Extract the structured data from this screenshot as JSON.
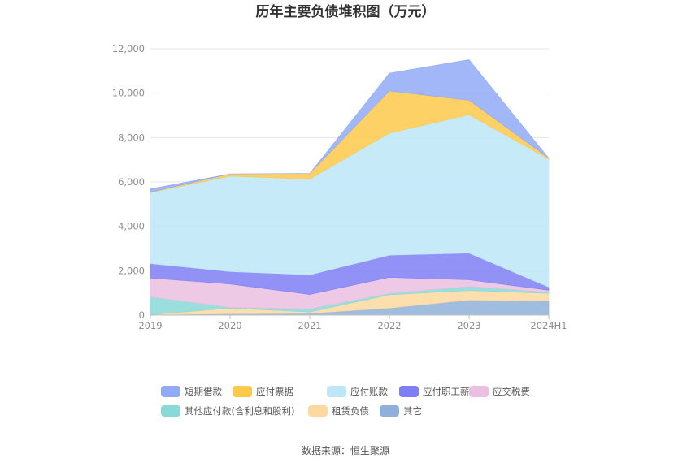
{
  "chart_data": {
    "type": "area",
    "stacked": true,
    "title": "历年主要负债堆积图（万元）",
    "xlabel": "",
    "ylabel": "",
    "categories": [
      "2019",
      "2020",
      "2021",
      "2022",
      "2023",
      "2024H1"
    ],
    "ylim": [
      0,
      12000
    ],
    "yticks": [
      0,
      2000,
      4000,
      6000,
      8000,
      10000,
      12000
    ],
    "ytick_labels": [
      "0",
      "2,000",
      "4,000",
      "6,000",
      "8,000",
      "10,000",
      "12,000"
    ],
    "grid": true,
    "legend_position": "bottom",
    "series": [
      {
        "name": "其它",
        "color": "#8fb0d9",
        "values": [
          20,
          60,
          80,
          320,
          680,
          650
        ]
      },
      {
        "name": "租赁负债",
        "color": "#fdd9a0",
        "values": [
          0,
          260,
          60,
          600,
          430,
          330
        ]
      },
      {
        "name": "其他应付款(含利息和股利)",
        "color": "#8ad8d8",
        "values": [
          800,
          30,
          140,
          60,
          180,
          60
        ]
      },
      {
        "name": "应交税费",
        "color": "#eabfe0",
        "values": [
          850,
          1050,
          650,
          720,
          300,
          80
        ]
      },
      {
        "name": "应付职工薪酬",
        "color": "#7f7ff5",
        "values": [
          650,
          560,
          880,
          1000,
          1200,
          140
        ]
      },
      {
        "name": "应付账款",
        "color": "#bde6f8",
        "values": [
          3200,
          4300,
          4320,
          5500,
          6240,
          5760
        ]
      },
      {
        "name": "应付票据",
        "color": "#fdc94a",
        "values": [
          20,
          100,
          250,
          1900,
          650,
          50
        ]
      },
      {
        "name": "短期借款",
        "color": "#90aaf7",
        "values": [
          150,
          0,
          0,
          800,
          1830,
          0
        ]
      }
    ],
    "legend_order": [
      "短期借款",
      "应付票据",
      "应付账款",
      "应付职工薪酬",
      "应交税费",
      "其他应付款(含利息和股利)",
      "租赁负债",
      "其它"
    ]
  },
  "footer": {
    "source": "数据来源：恒生聚源"
  }
}
